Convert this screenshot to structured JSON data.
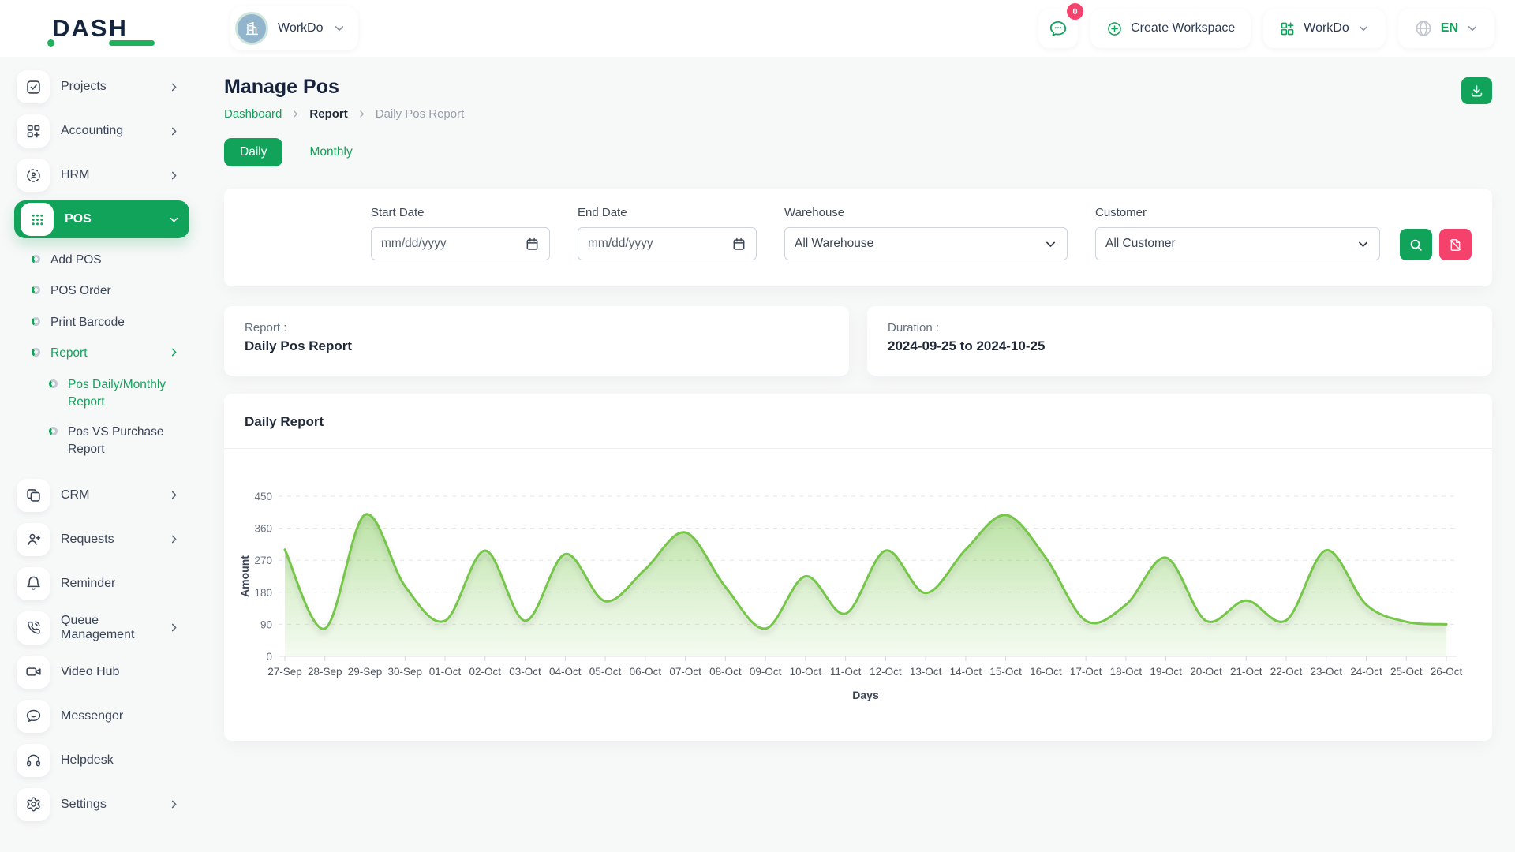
{
  "brand": {
    "logo_text": "DASH"
  },
  "topbar": {
    "workspace": {
      "name": "WorkDo"
    },
    "messages": {
      "badge": "0"
    },
    "create_workspace": "Create Workspace",
    "app_menu": "WorkDo",
    "language": "EN"
  },
  "sidebar": {
    "items": [
      {
        "label": "Projects",
        "icon": "projects",
        "chevron": "right",
        "type": "main"
      },
      {
        "label": "Accounting",
        "icon": "accounting",
        "chevron": "right",
        "type": "main"
      },
      {
        "label": "HRM",
        "icon": "hrm",
        "chevron": "right",
        "type": "main"
      },
      {
        "label": "POS",
        "icon": "pos",
        "chevron": "down",
        "type": "main",
        "active": true
      },
      {
        "label": "Add POS",
        "type": "sub"
      },
      {
        "label": "POS Order",
        "type": "sub"
      },
      {
        "label": "Print Barcode",
        "type": "sub"
      },
      {
        "label": "Report",
        "type": "sub",
        "chevron": "right",
        "active": true
      },
      {
        "label": "Pos Daily/Monthly Report",
        "type": "subsub",
        "active": true
      },
      {
        "label": "Pos VS Purchase Report",
        "type": "subsub"
      },
      {
        "label": "CRM",
        "icon": "crm",
        "chevron": "right",
        "type": "main",
        "gap_before": true
      },
      {
        "label": "Requests",
        "icon": "requests",
        "chevron": "right",
        "type": "main"
      },
      {
        "label": "Reminder",
        "icon": "reminder",
        "type": "main"
      },
      {
        "label": "Queue Management",
        "icon": "queue",
        "chevron": "right",
        "type": "main"
      },
      {
        "label": "Video Hub",
        "icon": "video",
        "type": "main"
      },
      {
        "label": "Messenger",
        "icon": "messenger",
        "type": "main"
      },
      {
        "label": "Helpdesk",
        "icon": "helpdesk",
        "type": "main"
      },
      {
        "label": "Settings",
        "icon": "settings",
        "chevron": "right",
        "type": "main"
      }
    ]
  },
  "page": {
    "title": "Manage Pos",
    "breadcrumb": [
      "Dashboard",
      "Report",
      "Daily Pos Report"
    ],
    "tabs": [
      {
        "label": "Daily",
        "active": true
      },
      {
        "label": "Monthly",
        "active": false
      }
    ]
  },
  "filters": {
    "fields": [
      {
        "label": "Start Date",
        "type": "date",
        "placeholder": "mm/dd/yyyy"
      },
      {
        "label": "End Date",
        "type": "date",
        "placeholder": "mm/dd/yyyy"
      },
      {
        "label": "Warehouse",
        "type": "select",
        "value": "All Warehouse"
      },
      {
        "label": "Customer",
        "type": "select",
        "value": "All Customer"
      }
    ]
  },
  "summary": {
    "report_label": "Report :",
    "report_value": "Daily Pos Report",
    "duration_label": "Duration :",
    "duration_value": "2024-09-25 to 2024-10-25"
  },
  "chart_card": {
    "title": "Daily Report"
  },
  "chart_data": {
    "type": "area",
    "title": "Daily Report",
    "xlabel": "Days",
    "ylabel": "Amount",
    "ylim": [
      0,
      450
    ],
    "yticks": [
      0,
      90,
      180,
      270,
      360,
      450
    ],
    "grid": "dashed-horizontal",
    "legend": "none",
    "smooth": true,
    "line_color": "#76c64a",
    "fill": "green-gradient",
    "categories": [
      "27-Sep",
      "28-Sep",
      "29-Sep",
      "30-Sep",
      "01-Oct",
      "02-Oct",
      "03-Oct",
      "04-Oct",
      "05-Oct",
      "06-Oct",
      "07-Oct",
      "08-Oct",
      "09-Oct",
      "10-Oct",
      "11-Oct",
      "12-Oct",
      "13-Oct",
      "14-Oct",
      "15-Oct",
      "16-Oct",
      "17-Oct",
      "18-Oct",
      "19-Oct",
      "20-Oct",
      "21-Oct",
      "22-Oct",
      "23-Oct",
      "24-Oct",
      "25-Oct",
      "26-Oct"
    ],
    "series": [
      {
        "name": "Amount",
        "values": [
          300,
          78,
          398,
          197,
          100,
          297,
          100,
          287,
          155,
          245,
          348,
          195,
          78,
          225,
          120,
          297,
          178,
          300,
          397,
          277,
          100,
          145,
          277,
          100,
          157,
          101,
          298,
          145,
          97,
          90
        ]
      }
    ]
  },
  "colors": {
    "primary_green": "#12a35b",
    "pink": "#f5426c",
    "chart_line_green": "#76c64a",
    "navy": "#15243d"
  }
}
